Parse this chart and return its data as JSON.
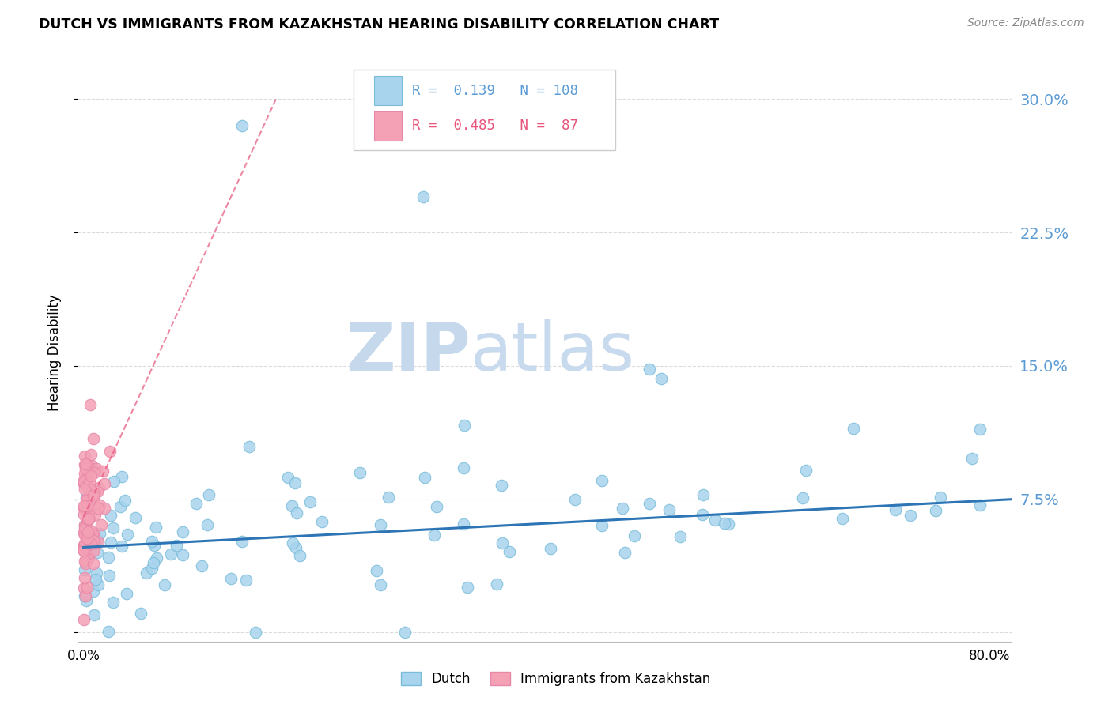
{
  "title": "DUTCH VS IMMIGRANTS FROM KAZAKHSTAN HEARING DISABILITY CORRELATION CHART",
  "source": "Source: ZipAtlas.com",
  "ylabel": "Hearing Disability",
  "xlim": [
    -0.005,
    0.82
  ],
  "ylim": [
    -0.005,
    0.32
  ],
  "dutch_R": 0.139,
  "dutch_N": 108,
  "kazakh_R": 0.485,
  "kazakh_N": 87,
  "dutch_color": "#A8D4ED",
  "kazakh_color": "#F4A0B5",
  "dutch_line_color": "#2E75B6",
  "kazakh_line_color": "#E8547A",
  "watermark_zip_color": "#C8D8EC",
  "watermark_atlas_color": "#C8D8EC",
  "grid_color": "#CCCCCC",
  "tick_label_color": "#5B9BD5",
  "background_color": "#FFFFFF",
  "ytick_vals": [
    0.0,
    0.075,
    0.15,
    0.225,
    0.3
  ],
  "ytick_labels": [
    "",
    "7.5%",
    "15.0%",
    "22.5%",
    "30.0%"
  ]
}
